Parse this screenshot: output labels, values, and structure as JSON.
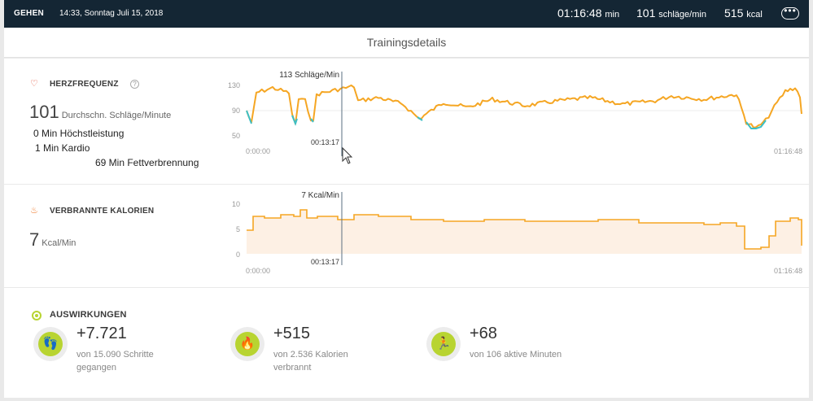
{
  "header": {
    "activity": "GEHEN",
    "datetime": "14:33, Sonntag Juli 15, 2018",
    "duration_value": "01:16:48",
    "duration_unit": "min",
    "hr_value": "101",
    "hr_unit": "schläge/min",
    "cal_value": "515",
    "cal_unit": "kcal",
    "menu_icon": "more-dots-icon"
  },
  "page_title": "Trainingsdetails",
  "heart": {
    "title": "HERZFREQUENZ",
    "help": "?",
    "avg_value": "101",
    "avg_label": "Durchschn. Schläge/Minute",
    "zones": [
      "0 Min Höchstleistung",
      "1 Min Kardio",
      "69 Min Fettverbrennung"
    ],
    "cursor_label": "113 Schläge/Min",
    "cursor_time": "00:13:17",
    "start_time": "0:00:00",
    "end_time": "01:16:48",
    "y_ticks": [
      "130",
      "90",
      "50"
    ],
    "color": "#f5a623",
    "low_color": "#3cbfc6"
  },
  "calories": {
    "title": "VERBRANNTE KALORIEN",
    "avg_value": "7",
    "avg_unit": "Kcal/Min",
    "cursor_label": "7 Kcal/Min",
    "cursor_time": "00:13:17",
    "start_time": "0:00:00",
    "end_time": "01:16:48",
    "y_ticks": [
      "10",
      "5",
      "0"
    ],
    "color": "#f5a623",
    "fill": "#fdf0e4"
  },
  "impact": {
    "title": "AUSWIRKUNGEN",
    "items": [
      {
        "value": "+7.721",
        "desc": "von 15.090 Schritte gegangen",
        "icon": "footsteps-icon"
      },
      {
        "value": "+515",
        "desc": "von 2.536 Kalorien verbrannt",
        "icon": "flame-icon"
      },
      {
        "value": "+68",
        "desc": "von 106 aktive Minuten",
        "icon": "runner-icon"
      }
    ],
    "accent": "#b8d431"
  }
}
